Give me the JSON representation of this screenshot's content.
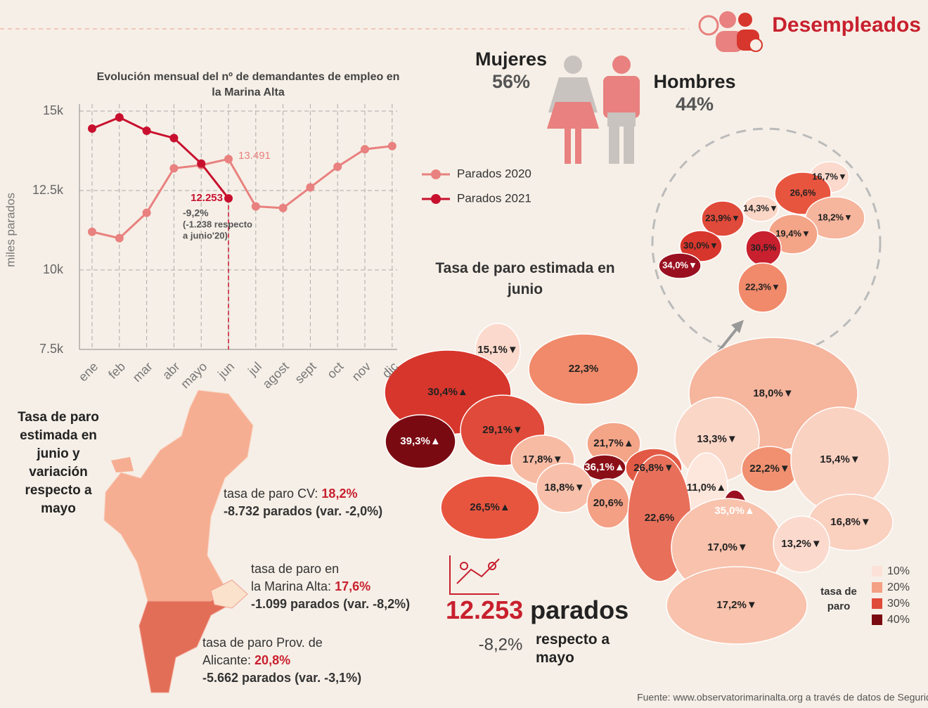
{
  "header": {
    "title": "Desempleados"
  },
  "gender": {
    "women_label": "Mujeres",
    "women_value": "56%",
    "men_label": "Hombres",
    "men_value": "44%"
  },
  "chart_data": {
    "type": "line",
    "title": "Evolución mensual del nº de demandantes de empleo en la Marina Alta",
    "y_label": "miles parados",
    "categories": [
      "ene",
      "feb",
      "mar",
      "abr",
      "mayo",
      "jun",
      "jul",
      "agost",
      "sept",
      "oct",
      "nov",
      "dic"
    ],
    "series": [
      {
        "name": "Parados 2020",
        "color": "#e8817f",
        "values": [
          11200,
          11000,
          11800,
          13200,
          13300,
          13491,
          12000,
          11950,
          12600,
          13250,
          13800,
          13900
        ],
        "value_labels": [
          null,
          null,
          null,
          null,
          null,
          "13.491",
          null,
          null,
          null,
          null,
          null,
          null
        ]
      },
      {
        "name": "Parados 2021",
        "color": "#c8102e",
        "values": [
          14450,
          14800,
          14380,
          14150,
          13350,
          12253,
          null,
          null,
          null,
          null,
          null,
          null
        ],
        "value_labels": [
          null,
          null,
          null,
          null,
          null,
          "12.253",
          null,
          null,
          null,
          null,
          null,
          null
        ]
      }
    ],
    "ylim": [
      7500,
      15000
    ],
    "yticks": [
      {
        "value": 7500,
        "label": "7.5k"
      },
      {
        "value": 10000,
        "label": "10k"
      },
      {
        "value": 12500,
        "label": "12.5k"
      },
      {
        "value": 15000,
        "label": "15k"
      }
    ],
    "grid": true,
    "annotations": [
      "-9,2%",
      "(-1.238 respecto",
      "a junio'20)"
    ]
  },
  "map": {
    "title": "Tasa de paro estimada en junio",
    "regions": [
      {
        "label": "15,1%▼",
        "color": "#fbd9cc"
      },
      {
        "label": "22,3%",
        "color": "#f08a6a"
      },
      {
        "label": "30,4%▲",
        "color": "#d7362c"
      },
      {
        "label": "39,3%▲",
        "color": "#7a0a12"
      },
      {
        "label": "29,1%▼",
        "color": "#e04a3a"
      },
      {
        "label": "18,0%▼",
        "color": "#f6b59d"
      },
      {
        "label": "13,3%▼",
        "color": "#fad6c7"
      },
      {
        "label": "21,7%▲",
        "color": "#f4a487"
      },
      {
        "label": "17,8%▼",
        "color": "#f7bba4"
      },
      {
        "label": "36,1%▲",
        "color": "#8b0f17"
      },
      {
        "label": "26,8%▼",
        "color": "#e25a45"
      },
      {
        "label": "22,2%▼",
        "color": "#f09070"
      },
      {
        "label": "15,4%▼",
        "color": "#fad2c2"
      },
      {
        "label": "18,8%▼",
        "color": "#f8c0aa"
      },
      {
        "label": "20,6%",
        "color": "#f4a084"
      },
      {
        "label": "11,0%▲",
        "color": "#fde6dc"
      },
      {
        "label": "26,5%▲",
        "color": "#e8553f"
      },
      {
        "label": "35,0%▲",
        "color": "#9a1020"
      },
      {
        "label": "22,6%",
        "color": "#e8705a"
      },
      {
        "label": "16,8%▼",
        "color": "#fad0bf"
      },
      {
        "label": "17,0%▼",
        "color": "#f8c2ac"
      },
      {
        "label": "13,2%▼",
        "color": "#fbdacd"
      },
      {
        "label": "17,2%▼",
        "color": "#f8c2ac"
      }
    ],
    "inset_regions": [
      {
        "label": "16,7%▼",
        "color": "#fbd9cc"
      },
      {
        "label": "26,6%",
        "color": "#e8553f"
      },
      {
        "label": "14,3%▼",
        "color": "#fad6c7"
      },
      {
        "label": "23,9%▼",
        "color": "#e04a3a"
      },
      {
        "label": "18,2%▼",
        "color": "#f6b59d"
      },
      {
        "label": "19,4%▼",
        "color": "#f4a487"
      },
      {
        "label": "30,0%▼",
        "color": "#d7362c"
      },
      {
        "label": "30,5%",
        "color": "#c8202e"
      },
      {
        "label": "34,0%▼",
        "color": "#9a1020"
      },
      {
        "label": "22,3%▼",
        "color": "#f08a6a"
      }
    ],
    "legend": {
      "title": "tasa de paro",
      "items": [
        {
          "label": "10%",
          "color": "#fbe1d7"
        },
        {
          "label": "20%",
          "color": "#f4a084"
        },
        {
          "label": "30%",
          "color": "#e04a3a"
        },
        {
          "label": "40%",
          "color": "#7a0a12"
        }
      ]
    }
  },
  "region_panel": {
    "title": [
      "Tasa de paro",
      "estimada en",
      "junio y",
      "variación",
      "respecto a",
      "mayo"
    ],
    "cv": {
      "label": "tasa de paro CV: ",
      "rate": "18,2%",
      "detail": "-8.732 parados (var. -2,0%)"
    },
    "marina": {
      "label1": "tasa de paro en",
      "label2": "la Marina Alta: ",
      "rate": "17,6%",
      "detail": "-1.099 parados (var. -8,2%)"
    },
    "alicante": {
      "label1": "tasa de paro Prov. de",
      "label2": "Alicante: ",
      "rate": "20,8%",
      "detail": "-5.662 parados (var. -3,1%)"
    }
  },
  "summary": {
    "value": "12.253",
    "unit": "parados",
    "change": "-8,2%",
    "change_label": [
      "respecto a",
      "mayo"
    ]
  },
  "source": "Fuente: www.observatorimarinalta.org a través de datos de Seguridad Social y LABORA"
}
